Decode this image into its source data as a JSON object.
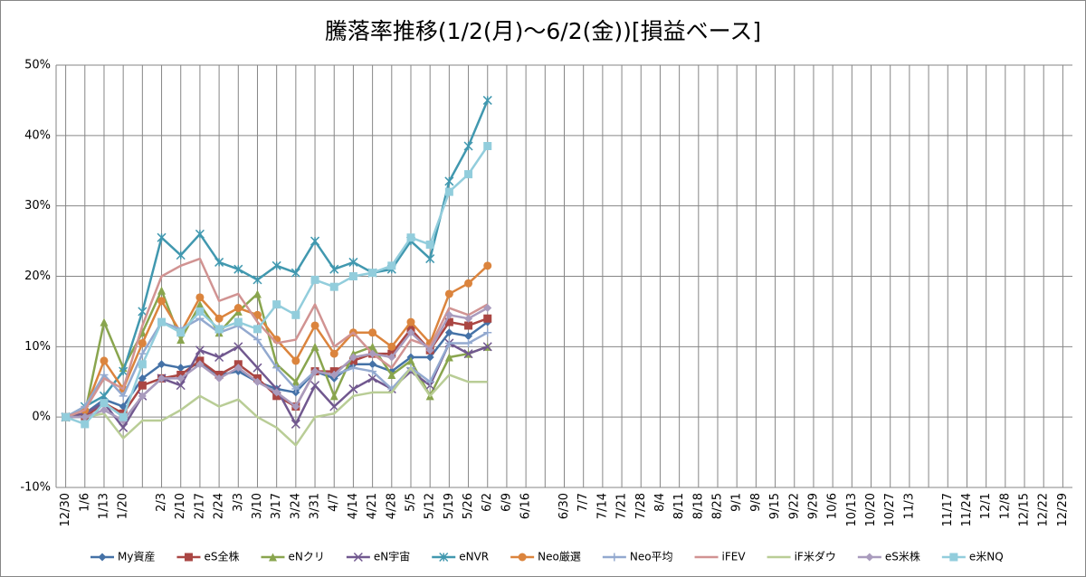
{
  "chart_data": {
    "type": "line",
    "title": "騰落率推移(1/2(月)～6/2(金))[損益ベース]",
    "categories": [
      "12/30",
      "1/6",
      "1/13",
      "1/20",
      null,
      "2/3",
      "2/10",
      "2/17",
      "2/24",
      "3/3",
      "3/10",
      "3/17",
      "3/24",
      "3/31",
      "4/7",
      "4/14",
      "4/21",
      "4/28",
      "5/5",
      "5/12",
      "5/19",
      "5/26",
      "6/2",
      "6/9",
      "6/16",
      null,
      "6/30",
      "7/7",
      "7/14",
      "7/21",
      "7/28",
      "8/4",
      "8/11",
      "8/18",
      "8/25",
      "9/1",
      "9/8",
      "9/15",
      "9/22",
      "9/29",
      "10/6",
      "10/13",
      "10/20",
      "10/27",
      "11/3",
      null,
      "11/17",
      "11/24",
      "12/1",
      "12/8",
      "12/15",
      "12/22",
      "12/29"
    ],
    "ylim": [
      -10,
      50
    ],
    "yticks": [
      {
        "value": -10,
        "label": "-10%"
      },
      {
        "value": 0,
        "label": "0%"
      },
      {
        "value": 10,
        "label": "10%"
      },
      {
        "value": 20,
        "label": "20%"
      },
      {
        "value": 30,
        "label": "30%"
      },
      {
        "value": 40,
        "label": "40%"
      },
      {
        "value": 50,
        "label": "50%"
      }
    ],
    "grid": true,
    "legend": "bottom",
    "series": [
      {
        "name": "My資産",
        "color": "#4572a7",
        "marker": "diamond",
        "values": [
          0,
          0.5,
          2.5,
          1.5,
          5.5,
          7.5,
          7,
          7.5,
          6,
          6.5,
          5,
          4,
          3.5,
          6.5,
          5.5,
          7.5,
          7.5,
          6.5,
          8.5,
          8.5,
          12,
          11.5,
          13.5,
          null,
          null,
          null,
          null,
          null,
          null,
          null,
          null,
          null,
          null,
          null,
          null,
          null,
          null,
          null,
          null,
          null,
          null,
          null,
          null,
          null,
          null,
          null,
          null,
          null,
          null,
          null,
          null,
          null,
          null
        ]
      },
      {
        "name": "eS全株",
        "color": "#aa4643",
        "marker": "square",
        "values": [
          0,
          0,
          2,
          0.5,
          4.5,
          5.5,
          6,
          8,
          6,
          7.5,
          5.5,
          3,
          1.5,
          6.5,
          6.5,
          8,
          9,
          9,
          12.5,
          9.5,
          13.5,
          13,
          14,
          null,
          null,
          null,
          null,
          null,
          null,
          null,
          null,
          null,
          null,
          null,
          null,
          null,
          null,
          null,
          null,
          null,
          null,
          null,
          null,
          null,
          null,
          null,
          null,
          null,
          null,
          null,
          null,
          null,
          null
        ]
      },
      {
        "name": "eNクリ",
        "color": "#89a54e",
        "marker": "triangle",
        "values": [
          0,
          0.5,
          13.5,
          7,
          12,
          18,
          11,
          16,
          12,
          15,
          17.5,
          7.5,
          5,
          10,
          3,
          9,
          10,
          6,
          8,
          3,
          8.5,
          9,
          10,
          null,
          null,
          null,
          null,
          null,
          null,
          null,
          null,
          null,
          null,
          null,
          null,
          null,
          null,
          null,
          null,
          null,
          null,
          null,
          null,
          null,
          null,
          null,
          null,
          null,
          null,
          null,
          null,
          null,
          null
        ]
      },
      {
        "name": "eN宇宙",
        "color": "#71588f",
        "marker": "x",
        "values": [
          0,
          0.5,
          2,
          -1.5,
          3,
          5.5,
          4.5,
          9.5,
          8.5,
          10,
          7,
          4,
          -1,
          4.5,
          1.5,
          4,
          5.5,
          4,
          6.5,
          4.5,
          10.5,
          9,
          10,
          null,
          null,
          null,
          null,
          null,
          null,
          null,
          null,
          null,
          null,
          null,
          null,
          null,
          null,
          null,
          null,
          null,
          null,
          null,
          null,
          null,
          null,
          null,
          null,
          null,
          null,
          null,
          null,
          null,
          null
        ]
      },
      {
        "name": "eNVR",
        "color": "#4198af",
        "marker": "star",
        "values": [
          0,
          1.5,
          3,
          6.5,
          15,
          25.5,
          23,
          26,
          22,
          21,
          19.5,
          21.5,
          20.5,
          25,
          21,
          22,
          20.5,
          21,
          25,
          22.5,
          33.5,
          38.5,
          45,
          null,
          null,
          null,
          null,
          null,
          null,
          null,
          null,
          null,
          null,
          null,
          null,
          null,
          null,
          null,
          null,
          null,
          null,
          null,
          null,
          null,
          null,
          null,
          null,
          null,
          null,
          null,
          null,
          null,
          null
        ]
      },
      {
        "name": "Neo厳選",
        "color": "#db843d",
        "marker": "circle",
        "values": [
          0,
          1,
          8,
          4,
          10.5,
          16.5,
          12,
          17,
          14,
          15.5,
          14.5,
          11,
          8,
          13,
          9,
          12,
          12,
          10,
          13.5,
          10.5,
          17.5,
          19,
          21.5,
          null,
          null,
          null,
          null,
          null,
          null,
          null,
          null,
          null,
          null,
          null,
          null,
          null,
          null,
          null,
          null,
          null,
          null,
          null,
          null,
          null,
          null,
          null,
          null,
          null,
          null,
          null,
          null,
          null,
          null
        ]
      },
      {
        "name": "Neo平均",
        "color": "#93a9cf",
        "marker": "plus",
        "values": [
          0,
          1.5,
          6,
          3,
          9,
          13.5,
          12.5,
          14,
          12,
          13,
          11,
          7,
          4,
          6.5,
          6,
          7,
          6.5,
          4,
          7,
          5,
          10.5,
          10.5,
          12,
          null,
          null,
          null,
          null,
          null,
          null,
          null,
          null,
          null,
          null,
          null,
          null,
          null,
          null,
          null,
          null,
          null,
          null,
          null,
          null,
          null,
          null,
          null,
          null,
          null,
          null,
          null,
          null,
          null,
          null
        ]
      },
      {
        "name": "iFEV",
        "color": "#d19392",
        "marker": "none",
        "values": [
          0,
          1,
          5.5,
          4,
          13,
          20,
          21.5,
          22.5,
          16.5,
          17.5,
          13.5,
          10.5,
          11,
          16,
          10,
          12,
          9,
          7,
          11,
          10,
          15.5,
          14.5,
          16,
          null,
          null,
          null,
          null,
          null,
          null,
          null,
          null,
          null,
          null,
          null,
          null,
          null,
          null,
          null,
          null,
          null,
          null,
          null,
          null,
          null,
          null,
          null,
          null,
          null,
          null,
          null,
          null,
          null,
          null
        ]
      },
      {
        "name": "iF米ダウ",
        "color": "#b9cd96",
        "marker": "none",
        "values": [
          0,
          0,
          0.5,
          -3,
          -0.5,
          -0.5,
          1,
          3,
          1.5,
          2.5,
          0,
          -1.5,
          -4,
          0,
          0.5,
          3,
          3.5,
          3.5,
          7,
          3,
          6,
          5,
          5,
          null,
          null,
          null,
          null,
          null,
          null,
          null,
          null,
          null,
          null,
          null,
          null,
          null,
          null,
          null,
          null,
          null,
          null,
          null,
          null,
          null,
          null,
          null,
          null,
          null,
          null,
          null,
          null,
          null,
          null
        ]
      },
      {
        "name": "eS米株",
        "color": "#a99bbd",
        "marker": "diamond",
        "values": [
          0,
          0,
          1,
          -0.5,
          3,
          5.5,
          5.5,
          7.5,
          5.5,
          7,
          5,
          3.5,
          1.5,
          6.5,
          6,
          8.5,
          9,
          8.5,
          12,
          9.5,
          14.5,
          14,
          15.5,
          null,
          null,
          null,
          null,
          null,
          null,
          null,
          null,
          null,
          null,
          null,
          null,
          null,
          null,
          null,
          null,
          null,
          null,
          null,
          null,
          null,
          null,
          null,
          null,
          null,
          null,
          null,
          null,
          null,
          null
        ]
      },
      {
        "name": "e米NQ",
        "color": "#92cddc",
        "marker": "square",
        "values": [
          0,
          -1,
          2,
          0,
          7.5,
          13.5,
          12,
          15,
          12.5,
          13.5,
          12.5,
          16,
          14.5,
          19.5,
          18.5,
          20,
          20.5,
          21.5,
          25.5,
          24.5,
          32,
          34.5,
          38.5,
          null,
          null,
          null,
          null,
          null,
          null,
          null,
          null,
          null,
          null,
          null,
          null,
          null,
          null,
          null,
          null,
          null,
          null,
          null,
          null,
          null,
          null,
          null,
          null,
          null,
          null,
          null,
          null,
          null,
          null
        ]
      }
    ]
  }
}
